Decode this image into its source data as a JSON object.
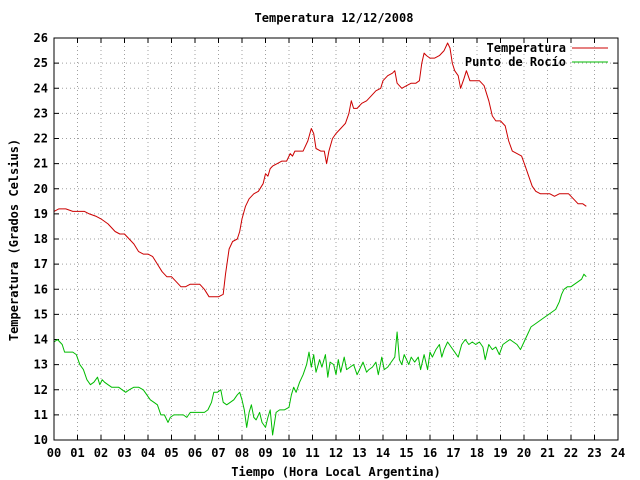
{
  "chart_data": {
    "type": "line",
    "title": "Temperatura 12/12/2008",
    "xlabel": "Tiempo (Hora Local Argentina)",
    "ylabel": "Temperatura (Grados Celsius)",
    "xlim": [
      0,
      24
    ],
    "ylim": [
      10,
      26
    ],
    "x_ticks": [
      "00",
      "01",
      "02",
      "03",
      "04",
      "05",
      "06",
      "07",
      "08",
      "09",
      "10",
      "11",
      "12",
      "13",
      "14",
      "15",
      "16",
      "17",
      "18",
      "19",
      "20",
      "21",
      "22",
      "23",
      "24"
    ],
    "y_ticks": [
      "10",
      "11",
      "12",
      "13",
      "14",
      "15",
      "16",
      "17",
      "18",
      "19",
      "20",
      "21",
      "22",
      "23",
      "24",
      "25",
      "26"
    ],
    "grid": true,
    "legend_position": "top-right",
    "series": [
      {
        "name": "Temperatura",
        "color": "#cc0000",
        "points": [
          [
            0.0,
            19.1
          ],
          [
            0.2,
            19.2
          ],
          [
            0.5,
            19.2
          ],
          [
            0.8,
            19.1
          ],
          [
            1.0,
            19.1
          ],
          [
            1.3,
            19.1
          ],
          [
            1.5,
            19.0
          ],
          [
            1.8,
            18.9
          ],
          [
            2.0,
            18.8
          ],
          [
            2.3,
            18.6
          ],
          [
            2.6,
            18.3
          ],
          [
            2.8,
            18.2
          ],
          [
            3.0,
            18.2
          ],
          [
            3.2,
            18.0
          ],
          [
            3.4,
            17.8
          ],
          [
            3.6,
            17.5
          ],
          [
            3.8,
            17.4
          ],
          [
            4.0,
            17.4
          ],
          [
            4.2,
            17.3
          ],
          [
            4.4,
            17.0
          ],
          [
            4.6,
            16.7
          ],
          [
            4.8,
            16.5
          ],
          [
            5.0,
            16.5
          ],
          [
            5.2,
            16.3
          ],
          [
            5.4,
            16.1
          ],
          [
            5.6,
            16.1
          ],
          [
            5.8,
            16.2
          ],
          [
            6.0,
            16.2
          ],
          [
            6.2,
            16.2
          ],
          [
            6.4,
            16.0
          ],
          [
            6.6,
            15.7
          ],
          [
            6.8,
            15.7
          ],
          [
            7.0,
            15.7
          ],
          [
            7.2,
            15.8
          ],
          [
            7.3,
            16.6
          ],
          [
            7.45,
            17.6
          ],
          [
            7.6,
            17.9
          ],
          [
            7.8,
            18.0
          ],
          [
            7.9,
            18.3
          ],
          [
            8.0,
            18.8
          ],
          [
            8.15,
            19.3
          ],
          [
            8.3,
            19.6
          ],
          [
            8.5,
            19.8
          ],
          [
            8.7,
            19.9
          ],
          [
            8.9,
            20.2
          ],
          [
            9.0,
            20.6
          ],
          [
            9.1,
            20.5
          ],
          [
            9.2,
            20.8
          ],
          [
            9.3,
            20.9
          ],
          [
            9.5,
            21.0
          ],
          [
            9.7,
            21.1
          ],
          [
            9.9,
            21.1
          ],
          [
            10.05,
            21.4
          ],
          [
            10.15,
            21.3
          ],
          [
            10.25,
            21.5
          ],
          [
            10.4,
            21.5
          ],
          [
            10.6,
            21.5
          ],
          [
            10.8,
            21.9
          ],
          [
            10.95,
            22.4
          ],
          [
            11.05,
            22.2
          ],
          [
            11.15,
            21.6
          ],
          [
            11.35,
            21.5
          ],
          [
            11.5,
            21.5
          ],
          [
            11.6,
            21.0
          ],
          [
            11.7,
            21.5
          ],
          [
            11.85,
            22.0
          ],
          [
            12.0,
            22.2
          ],
          [
            12.2,
            22.4
          ],
          [
            12.4,
            22.6
          ],
          [
            12.55,
            23.0
          ],
          [
            12.65,
            23.5
          ],
          [
            12.75,
            23.2
          ],
          [
            12.9,
            23.2
          ],
          [
            13.1,
            23.4
          ],
          [
            13.3,
            23.5
          ],
          [
            13.5,
            23.7
          ],
          [
            13.7,
            23.9
          ],
          [
            13.9,
            24.0
          ],
          [
            14.0,
            24.3
          ],
          [
            14.2,
            24.5
          ],
          [
            14.4,
            24.6
          ],
          [
            14.5,
            24.7
          ],
          [
            14.6,
            24.2
          ],
          [
            14.8,
            24.0
          ],
          [
            15.0,
            24.1
          ],
          [
            15.2,
            24.2
          ],
          [
            15.4,
            24.2
          ],
          [
            15.55,
            24.3
          ],
          [
            15.65,
            25.0
          ],
          [
            15.75,
            25.4
          ],
          [
            15.85,
            25.3
          ],
          [
            16.0,
            25.2
          ],
          [
            16.2,
            25.2
          ],
          [
            16.4,
            25.3
          ],
          [
            16.6,
            25.5
          ],
          [
            16.75,
            25.8
          ],
          [
            16.85,
            25.6
          ],
          [
            16.95,
            25.0
          ],
          [
            17.05,
            24.7
          ],
          [
            17.2,
            24.5
          ],
          [
            17.3,
            24.0
          ],
          [
            17.45,
            24.4
          ],
          [
            17.55,
            24.7
          ],
          [
            17.7,
            24.3
          ],
          [
            17.9,
            24.3
          ],
          [
            18.1,
            24.3
          ],
          [
            18.3,
            24.1
          ],
          [
            18.5,
            23.5
          ],
          [
            18.65,
            22.9
          ],
          [
            18.8,
            22.7
          ],
          [
            19.0,
            22.7
          ],
          [
            19.2,
            22.5
          ],
          [
            19.35,
            21.9
          ],
          [
            19.5,
            21.5
          ],
          [
            19.7,
            21.4
          ],
          [
            19.9,
            21.3
          ],
          [
            20.05,
            20.9
          ],
          [
            20.2,
            20.5
          ],
          [
            20.35,
            20.1
          ],
          [
            20.5,
            19.9
          ],
          [
            20.7,
            19.8
          ],
          [
            20.9,
            19.8
          ],
          [
            21.1,
            19.8
          ],
          [
            21.3,
            19.7
          ],
          [
            21.5,
            19.8
          ],
          [
            21.7,
            19.8
          ],
          [
            21.9,
            19.8
          ],
          [
            22.1,
            19.6
          ],
          [
            22.3,
            19.4
          ],
          [
            22.5,
            19.4
          ],
          [
            22.65,
            19.3
          ]
        ]
      },
      {
        "name": "Punto de Rocío",
        "color": "#00bb00",
        "points": [
          [
            0.0,
            13.9
          ],
          [
            0.15,
            14.0
          ],
          [
            0.35,
            13.8
          ],
          [
            0.45,
            13.5
          ],
          [
            0.6,
            13.5
          ],
          [
            0.8,
            13.5
          ],
          [
            0.95,
            13.4
          ],
          [
            1.1,
            13.0
          ],
          [
            1.25,
            12.8
          ],
          [
            1.4,
            12.4
          ],
          [
            1.55,
            12.2
          ],
          [
            1.7,
            12.3
          ],
          [
            1.85,
            12.5
          ],
          [
            1.95,
            12.2
          ],
          [
            2.05,
            12.4
          ],
          [
            2.15,
            12.3
          ],
          [
            2.3,
            12.2
          ],
          [
            2.45,
            12.1
          ],
          [
            2.6,
            12.1
          ],
          [
            2.75,
            12.1
          ],
          [
            2.9,
            12.0
          ],
          [
            3.05,
            11.9
          ],
          [
            3.2,
            12.0
          ],
          [
            3.4,
            12.1
          ],
          [
            3.6,
            12.1
          ],
          [
            3.8,
            12.0
          ],
          [
            3.95,
            11.8
          ],
          [
            4.1,
            11.6
          ],
          [
            4.25,
            11.5
          ],
          [
            4.4,
            11.4
          ],
          [
            4.55,
            11.0
          ],
          [
            4.7,
            11.0
          ],
          [
            4.85,
            10.7
          ],
          [
            4.95,
            10.9
          ],
          [
            5.1,
            11.0
          ],
          [
            5.3,
            11.0
          ],
          [
            5.5,
            11.0
          ],
          [
            5.65,
            10.9
          ],
          [
            5.8,
            11.1
          ],
          [
            6.0,
            11.1
          ],
          [
            6.2,
            11.1
          ],
          [
            6.4,
            11.1
          ],
          [
            6.55,
            11.2
          ],
          [
            6.7,
            11.5
          ],
          [
            6.8,
            11.9
          ],
          [
            6.95,
            11.9
          ],
          [
            7.1,
            12.0
          ],
          [
            7.2,
            11.5
          ],
          [
            7.35,
            11.4
          ],
          [
            7.5,
            11.5
          ],
          [
            7.65,
            11.6
          ],
          [
            7.8,
            11.8
          ],
          [
            7.9,
            11.9
          ],
          [
            8.0,
            11.6
          ],
          [
            8.1,
            11.2
          ],
          [
            8.2,
            10.5
          ],
          [
            8.3,
            11.1
          ],
          [
            8.4,
            11.4
          ],
          [
            8.5,
            10.9
          ],
          [
            8.6,
            10.8
          ],
          [
            8.75,
            11.1
          ],
          [
            8.85,
            10.7
          ],
          [
            9.0,
            10.5
          ],
          [
            9.1,
            10.9
          ],
          [
            9.2,
            11.2
          ],
          [
            9.3,
            10.2
          ],
          [
            9.45,
            11.1
          ],
          [
            9.6,
            11.2
          ],
          [
            9.8,
            11.2
          ],
          [
            10.0,
            11.3
          ],
          [
            10.1,
            11.8
          ],
          [
            10.2,
            12.1
          ],
          [
            10.3,
            11.9
          ],
          [
            10.45,
            12.3
          ],
          [
            10.6,
            12.6
          ],
          [
            10.75,
            13.0
          ],
          [
            10.85,
            13.5
          ],
          [
            10.95,
            12.9
          ],
          [
            11.05,
            13.4
          ],
          [
            11.15,
            12.7
          ],
          [
            11.3,
            13.2
          ],
          [
            11.4,
            12.9
          ],
          [
            11.55,
            13.4
          ],
          [
            11.65,
            12.5
          ],
          [
            11.75,
            13.1
          ],
          [
            11.9,
            13.0
          ],
          [
            12.0,
            12.6
          ],
          [
            12.1,
            13.2
          ],
          [
            12.2,
            12.7
          ],
          [
            12.35,
            13.3
          ],
          [
            12.45,
            12.8
          ],
          [
            12.6,
            12.9
          ],
          [
            12.75,
            13.0
          ],
          [
            12.9,
            12.6
          ],
          [
            13.0,
            12.8
          ],
          [
            13.15,
            13.1
          ],
          [
            13.3,
            12.7
          ],
          [
            13.4,
            12.8
          ],
          [
            13.55,
            12.9
          ],
          [
            13.7,
            13.1
          ],
          [
            13.8,
            12.6
          ],
          [
            13.95,
            13.3
          ],
          [
            14.05,
            12.8
          ],
          [
            14.2,
            12.9
          ],
          [
            14.35,
            13.1
          ],
          [
            14.5,
            13.3
          ],
          [
            14.6,
            14.3
          ],
          [
            14.7,
            13.2
          ],
          [
            14.8,
            13.0
          ],
          [
            14.9,
            13.4
          ],
          [
            15.0,
            13.2
          ],
          [
            15.1,
            13.0
          ],
          [
            15.2,
            13.3
          ],
          [
            15.35,
            13.1
          ],
          [
            15.5,
            13.3
          ],
          [
            15.6,
            12.8
          ],
          [
            15.75,
            13.4
          ],
          [
            15.9,
            12.8
          ],
          [
            16.0,
            13.5
          ],
          [
            16.1,
            13.3
          ],
          [
            16.25,
            13.6
          ],
          [
            16.4,
            13.8
          ],
          [
            16.5,
            13.3
          ],
          [
            16.6,
            13.6
          ],
          [
            16.75,
            13.9
          ],
          [
            16.9,
            13.7
          ],
          [
            17.05,
            13.5
          ],
          [
            17.2,
            13.3
          ],
          [
            17.35,
            13.8
          ],
          [
            17.5,
            14.0
          ],
          [
            17.65,
            13.8
          ],
          [
            17.8,
            13.9
          ],
          [
            17.95,
            13.8
          ],
          [
            18.1,
            13.9
          ],
          [
            18.25,
            13.7
          ],
          [
            18.35,
            13.2
          ],
          [
            18.5,
            13.8
          ],
          [
            18.65,
            13.6
          ],
          [
            18.8,
            13.7
          ],
          [
            18.95,
            13.4
          ],
          [
            19.1,
            13.8
          ],
          [
            19.25,
            13.9
          ],
          [
            19.4,
            14.0
          ],
          [
            19.55,
            13.9
          ],
          [
            19.7,
            13.8
          ],
          [
            19.85,
            13.6
          ],
          [
            20.0,
            13.9
          ],
          [
            20.15,
            14.2
          ],
          [
            20.3,
            14.5
          ],
          [
            20.45,
            14.6
          ],
          [
            20.6,
            14.7
          ],
          [
            20.75,
            14.8
          ],
          [
            20.9,
            14.9
          ],
          [
            21.05,
            15.0
          ],
          [
            21.2,
            15.1
          ],
          [
            21.35,
            15.2
          ],
          [
            21.5,
            15.5
          ],
          [
            21.6,
            15.8
          ],
          [
            21.7,
            16.0
          ],
          [
            21.85,
            16.1
          ],
          [
            22.0,
            16.1
          ],
          [
            22.15,
            16.2
          ],
          [
            22.3,
            16.3
          ],
          [
            22.45,
            16.4
          ],
          [
            22.55,
            16.6
          ],
          [
            22.65,
            16.5
          ]
        ]
      }
    ]
  }
}
